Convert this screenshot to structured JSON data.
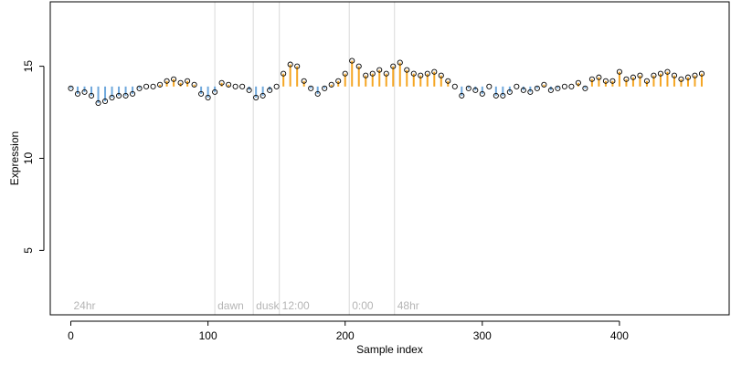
{
  "chart_data": {
    "type": "scatter",
    "title": "",
    "xlabel": "Sample index",
    "ylabel": "Expression",
    "xlim": [
      -15,
      480
    ],
    "ylim": [
      1.5,
      18.5
    ],
    "xticks": [
      0,
      100,
      200,
      300,
      400
    ],
    "yticks": [
      5,
      10,
      15
    ],
    "grid": false,
    "baseline": 13.9,
    "colors": {
      "above": "#f5a623",
      "below": "#6fa8dc",
      "point_edge": "#000000",
      "divider": "#d9d9d9",
      "period_label": "#b5b5b5"
    },
    "period_markers": [
      {
        "x": 0,
        "label": "24hr"
      },
      {
        "x": 105,
        "label": "dawn"
      },
      {
        "x": 133,
        "label": "dusk"
      },
      {
        "x": 152,
        "label": "12:00"
      },
      {
        "x": 203,
        "label": "0:00"
      },
      {
        "x": 236,
        "label": "48hr"
      }
    ],
    "dividers": [
      105,
      133,
      152,
      203,
      236
    ],
    "series": [
      {
        "x": [
          0,
          5,
          10,
          15,
          20,
          25,
          30,
          35,
          40,
          45,
          50,
          55,
          60,
          65,
          70,
          75,
          80,
          85,
          90,
          95,
          100,
          105,
          110,
          115,
          120,
          125,
          130,
          135,
          140,
          145,
          150,
          155,
          160,
          165,
          170,
          175,
          180,
          185,
          190,
          195,
          200,
          205,
          210,
          215,
          220,
          225,
          230,
          235,
          240,
          245,
          250,
          255,
          260,
          265,
          270,
          275,
          280,
          285,
          290,
          295,
          300,
          305,
          310,
          315,
          320,
          325,
          330,
          335,
          340,
          345,
          350,
          355,
          360,
          365,
          370,
          375,
          380,
          385,
          390,
          395,
          400,
          405,
          410,
          415,
          420,
          425,
          430,
          435,
          440,
          445,
          450,
          455,
          460
        ],
        "y": [
          13.8,
          13.5,
          13.6,
          13.4,
          13.0,
          13.1,
          13.3,
          13.4,
          13.4,
          13.5,
          13.8,
          13.9,
          13.9,
          14.0,
          14.2,
          14.3,
          14.1,
          14.2,
          14.0,
          13.5,
          13.3,
          13.6,
          14.1,
          14.0,
          13.9,
          13.9,
          13.7,
          13.3,
          13.4,
          13.7,
          13.9,
          14.6,
          15.1,
          15.0,
          14.2,
          13.8,
          13.5,
          13.8,
          14.0,
          14.2,
          14.6,
          15.3,
          15.0,
          14.5,
          14.6,
          14.8,
          14.6,
          15.0,
          15.2,
          14.8,
          14.6,
          14.5,
          14.6,
          14.7,
          14.5,
          14.2,
          13.9,
          13.4,
          13.8,
          13.7,
          13.5,
          13.9,
          13.4,
          13.4,
          13.6,
          13.9,
          13.7,
          13.6,
          13.8,
          14.0,
          13.7,
          13.8,
          13.9,
          13.9,
          14.1,
          13.8,
          14.3,
          14.4,
          14.2,
          14.2,
          14.7,
          14.3,
          14.4,
          14.5,
          14.2,
          14.5,
          14.6,
          14.7,
          14.5,
          14.3,
          14.4,
          14.5,
          14.6
        ]
      }
    ]
  }
}
